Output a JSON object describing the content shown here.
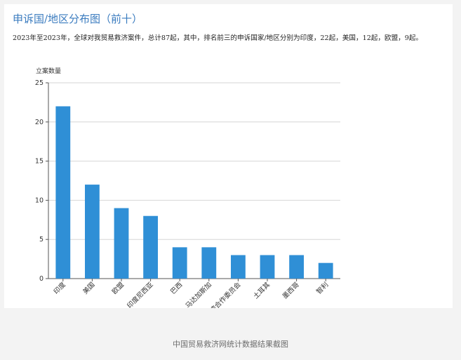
{
  "header": {
    "title": "申诉国/地区分布图（前十）",
    "description": "2023年至2023年，全球对我贸易救济案件，总计87起，其中，排名前三的申诉国家/地区分别为印度，22起，美国，12起，欧盟，9起。"
  },
  "chart_data": {
    "type": "bar",
    "title": "",
    "xlabel": "",
    "ylabel": "立案数量",
    "categories": [
      "印度",
      "美国",
      "欧盟",
      "印度尼西亚",
      "巴西",
      "马达加斯加",
      "海湾合作委员会",
      "土耳其",
      "墨西哥",
      "智利"
    ],
    "values": [
      22,
      12,
      9,
      8,
      4,
      4,
      3,
      3,
      3,
      2
    ],
    "ylim": [
      0,
      25
    ],
    "yticks": [
      0,
      5,
      10,
      15,
      20,
      25
    ],
    "grid": true,
    "bar_color": "#2f8fd6"
  },
  "caption": "中国贸易救济网统计数据结果截图"
}
